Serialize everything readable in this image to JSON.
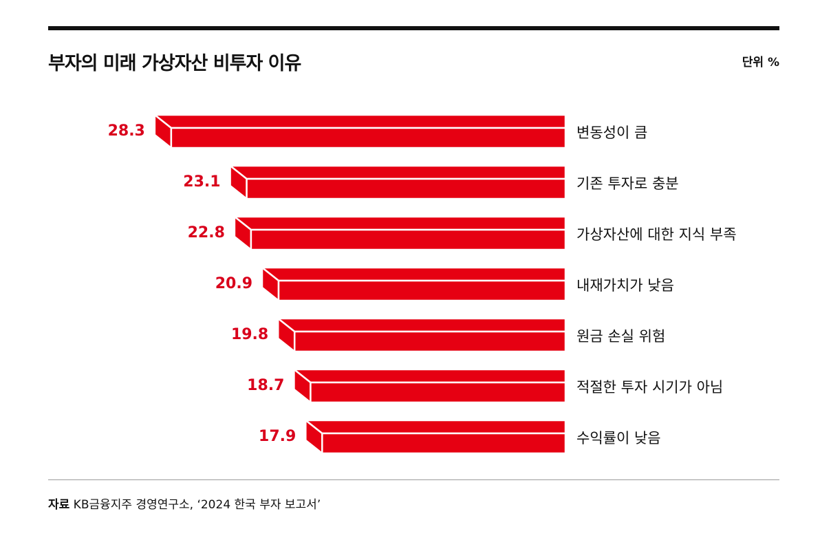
{
  "header": {
    "title": "부자의 미래 가상자산 비투자 이유",
    "unit": "단위 %"
  },
  "chart_data": {
    "type": "bar",
    "orientation": "horizontal",
    "title": "부자의 미래 가상자산 비투자 이유",
    "unit": "%",
    "categories": [
      "변동성이 큼",
      "기존 투자로 충분",
      "가상자산에 대한 지식 부족",
      "내재가치가 낮음",
      "원금 손실 위험",
      "적절한 투자 시기가 아님",
      "수익률이 낮음"
    ],
    "values": [
      28.3,
      23.1,
      22.8,
      20.9,
      19.8,
      18.7,
      17.9
    ],
    "value_labels": [
      "28.3",
      "23.1",
      "22.8",
      "20.9",
      "19.8",
      "18.7",
      "17.9"
    ],
    "bar_color": "#e60012",
    "label_color": "#d9001b"
  },
  "footer": {
    "source_label": "자료",
    "source_text": " KB금융지주 경영연구소, ‘2024 한국 부자 보고서’"
  }
}
